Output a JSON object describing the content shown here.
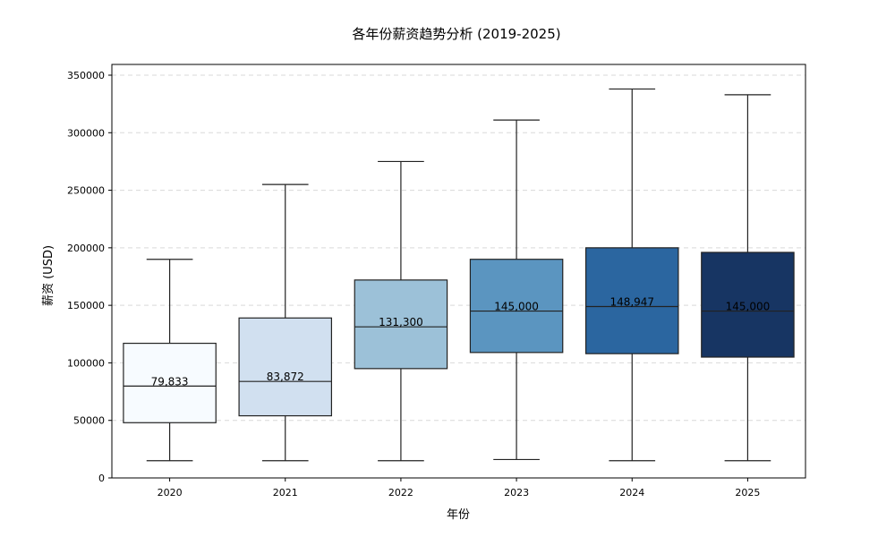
{
  "chart_data": {
    "type": "box",
    "title": "各年份薪资趋势分析 (2019-2025)",
    "xlabel": "年份",
    "ylabel": "薪资 (USD)",
    "ylim": [
      0,
      350000
    ],
    "yticks": [
      0,
      50000,
      100000,
      150000,
      200000,
      250000,
      300000,
      350000
    ],
    "ytick_labels": [
      "0",
      "50000",
      "100000",
      "150000",
      "200000",
      "250000",
      "300000",
      "350000"
    ],
    "grid": "y-dashed",
    "categories": [
      "2020",
      "2021",
      "2022",
      "2023",
      "2024",
      "2025"
    ],
    "boxes": [
      {
        "category": "2020",
        "whisker_low": 15000,
        "q1": 48000,
        "median": 79833,
        "q3": 117000,
        "whisker_high": 190000,
        "median_label": "79,833",
        "color": "#f7fbff"
      },
      {
        "category": "2021",
        "whisker_low": 15000,
        "q1": 54000,
        "median": 83872,
        "q3": 139000,
        "whisker_high": 255000,
        "median_label": "83,872",
        "color": "#d1e0f0"
      },
      {
        "category": "2022",
        "whisker_low": 15000,
        "q1": 95000,
        "median": 131300,
        "q3": 172000,
        "whisker_high": 275000,
        "median_label": "131,300",
        "color": "#9cc1d8"
      },
      {
        "category": "2023",
        "whisker_low": 16000,
        "q1": 109000,
        "median": 145000,
        "q3": 190000,
        "whisker_high": 311000,
        "median_label": "145,000",
        "color": "#5b95c0"
      },
      {
        "category": "2024",
        "whisker_low": 15000,
        "q1": 108000,
        "median": 148947,
        "q3": 200000,
        "whisker_high": 338000,
        "median_label": "148,947",
        "color": "#2b66a0"
      },
      {
        "category": "2025",
        "whisker_low": 15000,
        "q1": 105000,
        "median": 145000,
        "q3": 196000,
        "whisker_high": 333000,
        "median_label": "145,000",
        "color": "#173563"
      }
    ]
  }
}
